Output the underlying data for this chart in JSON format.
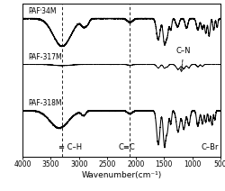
{
  "xlabel": "Wavenumber(cm⁻¹)",
  "labels": [
    "PAFⁱ34M",
    "PAF-317M",
    "PAF-318M"
  ],
  "dashed_lines": [
    3300,
    2100,
    500
  ],
  "annot_CH": "≡ C–H",
  "annot_CC": "C≡C",
  "annot_CN": "C–N",
  "annot_CBr": "C–Br",
  "background_color": "#ffffff",
  "fontsize_label": 6.5,
  "fontsize_tick": 5.5,
  "fontsize_annot": 6.0,
  "fontsize_series": 5.5
}
